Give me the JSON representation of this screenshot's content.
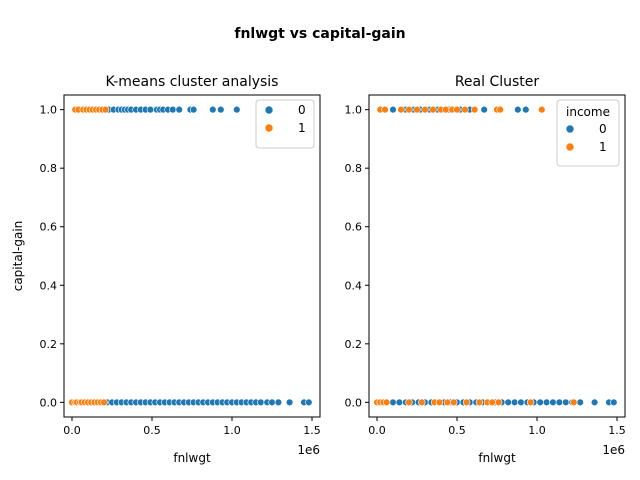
{
  "figure_title": "fnlwgt vs capital-gain",
  "colors": {
    "0": "#1f77b4",
    "1": "#ff7f0e"
  },
  "chart_data": [
    {
      "type": "scatter",
      "title": "K-means cluster analysis",
      "xlabel": "fnlwgt",
      "ylabel": "capital-gain",
      "x_offset_label": "1e6",
      "xlim": [
        -0.05,
        1.55
      ],
      "ylim": [
        -0.05,
        1.05
      ],
      "x_ticks": [
        0.0,
        0.5,
        1.0,
        1.5
      ],
      "x_tick_labels": [
        "0.0",
        "0.5",
        "1.0",
        "1.5"
      ],
      "y_ticks": [
        0.0,
        0.2,
        0.4,
        0.6,
        0.8,
        1.0
      ],
      "y_tick_labels": [
        "0.0",
        "0.2",
        "0.4",
        "0.6",
        "0.8",
        "1.0"
      ],
      "legend": {
        "position": "top-right",
        "title": "",
        "entries": [
          "0",
          "1"
        ]
      },
      "series": [
        {
          "name": "0",
          "color": "#1f77b4",
          "points": [
            [
              0.23,
              1
            ],
            [
              0.26,
              1
            ],
            [
              0.29,
              1
            ],
            [
              0.31,
              1
            ],
            [
              0.33,
              1
            ],
            [
              0.35,
              1
            ],
            [
              0.37,
              1
            ],
            [
              0.4,
              1
            ],
            [
              0.43,
              1
            ],
            [
              0.46,
              1
            ],
            [
              0.49,
              1
            ],
            [
              0.53,
              1
            ],
            [
              0.55,
              1
            ],
            [
              0.57,
              1
            ],
            [
              0.6,
              1
            ],
            [
              0.63,
              1
            ],
            [
              0.67,
              1
            ],
            [
              0.74,
              1
            ],
            [
              0.76,
              1
            ],
            [
              0.88,
              1
            ],
            [
              0.93,
              1
            ],
            [
              1.03,
              1
            ],
            [
              0.22,
              0
            ],
            [
              0.25,
              0
            ],
            [
              0.28,
              0
            ],
            [
              0.31,
              0
            ],
            [
              0.34,
              0
            ],
            [
              0.37,
              0
            ],
            [
              0.4,
              0
            ],
            [
              0.43,
              0
            ],
            [
              0.46,
              0
            ],
            [
              0.49,
              0
            ],
            [
              0.52,
              0
            ],
            [
              0.55,
              0
            ],
            [
              0.58,
              0
            ],
            [
              0.61,
              0
            ],
            [
              0.64,
              0
            ],
            [
              0.67,
              0
            ],
            [
              0.7,
              0
            ],
            [
              0.73,
              0
            ],
            [
              0.76,
              0
            ],
            [
              0.79,
              0
            ],
            [
              0.82,
              0
            ],
            [
              0.85,
              0
            ],
            [
              0.88,
              0
            ],
            [
              0.91,
              0
            ],
            [
              0.94,
              0
            ],
            [
              0.97,
              0
            ],
            [
              1.0,
              0
            ],
            [
              1.03,
              0
            ],
            [
              1.06,
              0
            ],
            [
              1.09,
              0
            ],
            [
              1.12,
              0
            ],
            [
              1.15,
              0
            ],
            [
              1.18,
              0
            ],
            [
              1.22,
              0
            ],
            [
              1.25,
              0
            ],
            [
              1.29,
              0
            ],
            [
              1.36,
              0
            ],
            [
              1.45,
              0
            ],
            [
              1.48,
              0
            ]
          ]
        },
        {
          "name": "1",
          "color": "#ff7f0e",
          "points": [
            [
              0.02,
              1
            ],
            [
              0.04,
              1
            ],
            [
              0.07,
              1
            ],
            [
              0.09,
              1
            ],
            [
              0.11,
              1
            ],
            [
              0.13,
              1
            ],
            [
              0.15,
              1
            ],
            [
              0.17,
              1
            ],
            [
              0.19,
              1
            ],
            [
              0.21,
              1
            ],
            [
              0.0,
              0
            ],
            [
              0.02,
              0
            ],
            [
              0.03,
              0
            ],
            [
              0.05,
              0
            ],
            [
              0.06,
              0
            ],
            [
              0.08,
              0
            ],
            [
              0.1,
              0
            ],
            [
              0.12,
              0
            ],
            [
              0.14,
              0
            ],
            [
              0.16,
              0
            ],
            [
              0.18,
              0
            ],
            [
              0.2,
              0
            ]
          ]
        }
      ]
    },
    {
      "type": "scatter",
      "title": "Real Cluster",
      "xlabel": "fnlwgt",
      "ylabel": "",
      "x_offset_label": "1e6",
      "xlim": [
        -0.05,
        1.55
      ],
      "ylim": [
        -0.05,
        1.05
      ],
      "x_ticks": [
        0.0,
        0.5,
        1.0,
        1.5
      ],
      "x_tick_labels": [
        "0.0",
        "0.5",
        "1.0",
        "1.5"
      ],
      "y_ticks": [
        0.0,
        0.2,
        0.4,
        0.6,
        0.8,
        1.0
      ],
      "y_tick_labels": [
        "0.0",
        "0.2",
        "0.4",
        "0.6",
        "0.8",
        "1.0"
      ],
      "legend": {
        "position": "top-right",
        "title": "income",
        "entries": [
          "0",
          "1"
        ]
      },
      "series": [
        {
          "name": "0",
          "color": "#1f77b4",
          "points": [
            [
              0.1,
              1
            ],
            [
              0.18,
              1
            ],
            [
              0.23,
              1
            ],
            [
              0.27,
              1
            ],
            [
              0.33,
              1
            ],
            [
              0.38,
              1
            ],
            [
              0.45,
              1
            ],
            [
              0.52,
              1
            ],
            [
              0.58,
              1
            ],
            [
              0.67,
              1
            ],
            [
              0.88,
              1
            ],
            [
              0.93,
              1
            ],
            [
              0.1,
              0
            ],
            [
              0.14,
              0
            ],
            [
              0.18,
              0
            ],
            [
              0.22,
              0
            ],
            [
              0.26,
              0
            ],
            [
              0.3,
              0
            ],
            [
              0.34,
              0
            ],
            [
              0.38,
              0
            ],
            [
              0.42,
              0
            ],
            [
              0.46,
              0
            ],
            [
              0.5,
              0
            ],
            [
              0.54,
              0
            ],
            [
              0.58,
              0
            ],
            [
              0.62,
              0
            ],
            [
              0.66,
              0
            ],
            [
              0.7,
              0
            ],
            [
              0.74,
              0
            ],
            [
              0.78,
              0
            ],
            [
              0.82,
              0
            ],
            [
              0.86,
              0
            ],
            [
              0.9,
              0
            ],
            [
              0.94,
              0
            ],
            [
              0.98,
              0
            ],
            [
              1.02,
              0
            ],
            [
              1.06,
              0
            ],
            [
              1.1,
              0
            ],
            [
              1.14,
              0
            ],
            [
              1.18,
              0
            ],
            [
              1.22,
              0
            ],
            [
              1.27,
              0
            ],
            [
              1.36,
              0
            ],
            [
              1.45,
              0
            ],
            [
              1.48,
              0
            ]
          ]
        },
        {
          "name": "1",
          "color": "#ff7f0e",
          "points": [
            [
              0.02,
              1
            ],
            [
              0.05,
              1
            ],
            [
              0.15,
              1
            ],
            [
              0.2,
              1
            ],
            [
              0.25,
              1
            ],
            [
              0.3,
              1
            ],
            [
              0.35,
              1
            ],
            [
              0.4,
              1
            ],
            [
              0.43,
              1
            ],
            [
              0.47,
              1
            ],
            [
              0.5,
              1
            ],
            [
              0.55,
              1
            ],
            [
              0.61,
              1
            ],
            [
              0.75,
              1
            ],
            [
              0.77,
              1
            ],
            [
              1.03,
              1
            ],
            [
              0.0,
              0
            ],
            [
              0.02,
              0
            ],
            [
              0.04,
              0
            ],
            [
              0.06,
              0
            ],
            [
              0.2,
              0
            ],
            [
              0.28,
              0
            ],
            [
              0.36,
              0
            ],
            [
              0.39,
              0
            ],
            [
              0.44,
              0
            ],
            [
              0.48,
              0
            ],
            [
              0.56,
              0
            ],
            [
              0.64,
              0
            ],
            [
              0.69,
              0
            ],
            [
              0.72,
              0
            ],
            [
              0.76,
              0
            ],
            [
              0.96,
              0
            ],
            [
              1.23,
              0
            ]
          ]
        }
      ]
    }
  ]
}
